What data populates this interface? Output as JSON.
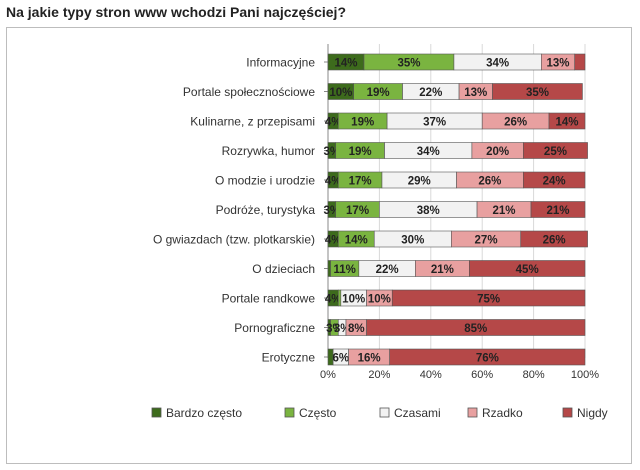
{
  "title": "Na jakie typy stron www wchodzi Pani najczęściej?",
  "chart_data": {
    "type": "bar",
    "orientation": "horizontal",
    "stacked": true,
    "percent_scale": true,
    "title": "Na jakie typy stron www wchodzi Pani najczęściej?",
    "categories": [
      "Informacyjne",
      "Portale społecznościowe",
      "Kulinarne, z przepisami",
      "Rozrywka, humor",
      "O modzie i urodzie",
      "Podróże, turystyka",
      "O gwiazdach (tzw. plotkarskie)",
      "O dzieciach",
      "Portale randkowe",
      "Pornograficzne",
      "Erotyczne"
    ],
    "series": [
      {
        "name": "Bardzo często",
        "color": "#3d6b1c",
        "values": [
          14,
          10,
          4,
          3,
          4,
          3,
          4,
          1,
          4,
          1,
          2
        ]
      },
      {
        "name": "Często",
        "color": "#7ab440",
        "values": [
          35,
          19,
          19,
          19,
          17,
          17,
          14,
          11,
          1,
          3,
          0
        ]
      },
      {
        "name": "Czasami",
        "color": "#f2f2f2",
        "values": [
          34,
          22,
          37,
          34,
          29,
          38,
          30,
          22,
          10,
          3,
          6
        ]
      },
      {
        "name": "Rzadko",
        "color": "#e8a0a0",
        "values": [
          13,
          13,
          26,
          20,
          26,
          21,
          27,
          21,
          10,
          8,
          16
        ]
      },
      {
        "name": "Nigdy",
        "color": "#b54848",
        "values": [
          4,
          35,
          14,
          25,
          24,
          21,
          26,
          45,
          75,
          85,
          76
        ]
      }
    ],
    "labels": [
      [
        "14%",
        "35%",
        "34%",
        "13%",
        ""
      ],
      [
        "10%",
        "19%",
        "22%",
        "13%",
        "35%"
      ],
      [
        "4%",
        "19%",
        "37%",
        "26%",
        "14%"
      ],
      [
        "3%",
        "19%",
        "34%",
        "20%",
        "25%"
      ],
      [
        "4%",
        "17%",
        "29%",
        "26%",
        "24%"
      ],
      [
        "3%",
        "17%",
        "38%",
        "21%",
        "21%"
      ],
      [
        "4%",
        "14%",
        "30%",
        "27%",
        "26%"
      ],
      [
        "",
        "11%",
        "22%",
        "21%",
        "45%"
      ],
      [
        "4%",
        "",
        "10%",
        "10%",
        "75%"
      ],
      [
        "",
        "3%",
        "3%",
        "8%",
        "85%"
      ],
      [
        "",
        "",
        "6%",
        "16%",
        "76%"
      ]
    ],
    "x_ticks": [
      "0%",
      "20%",
      "40%",
      "60%",
      "80%",
      "100%"
    ],
    "xlim": [
      0,
      100
    ],
    "legend_position": "bottom"
  }
}
